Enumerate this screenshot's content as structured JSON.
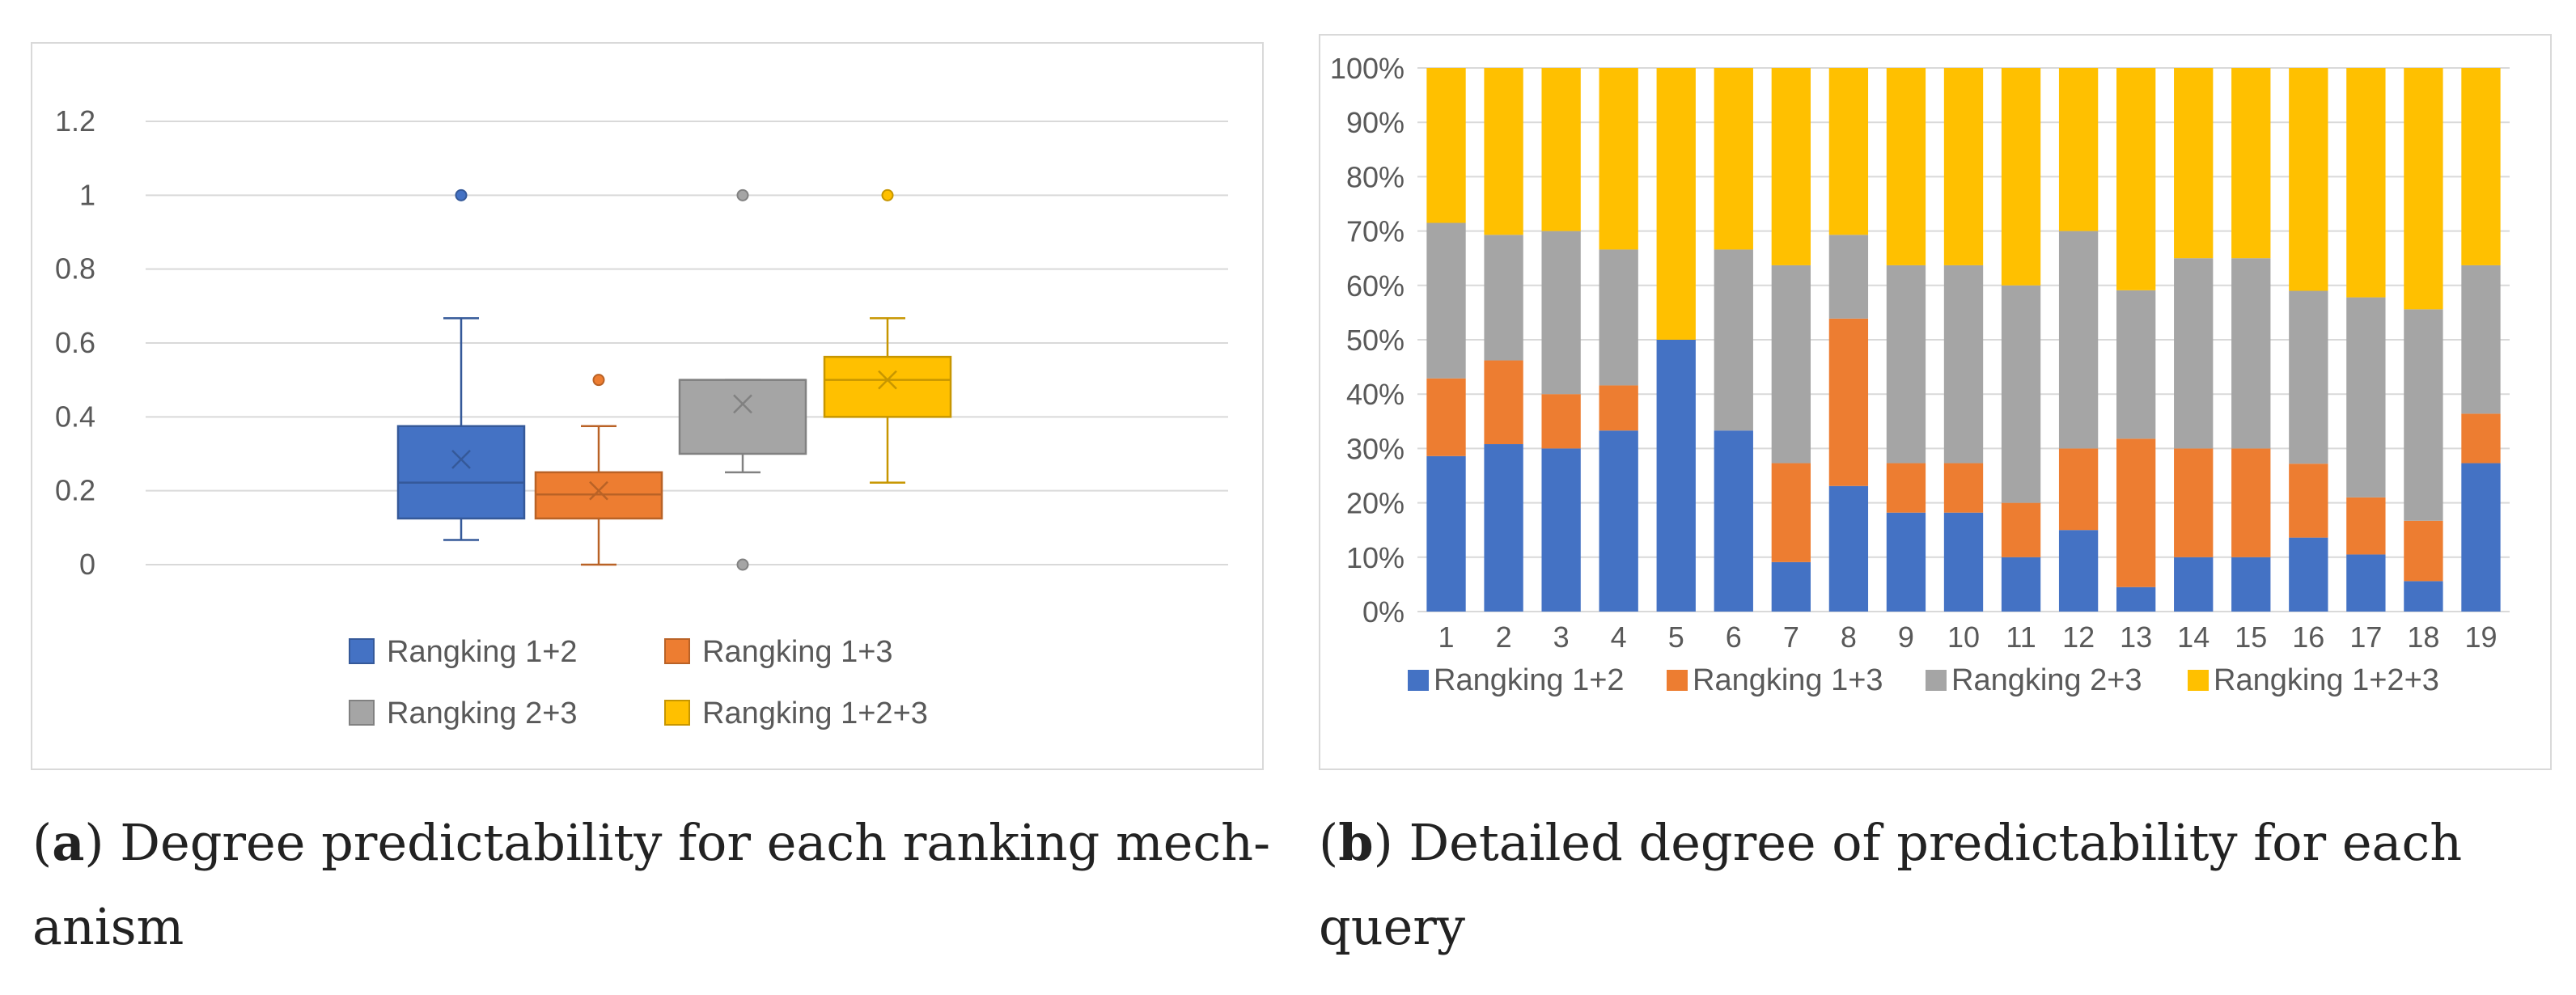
{
  "chart_data": [
    {
      "id": "a",
      "type": "box",
      "title": "",
      "xlabel": "",
      "ylabel": "",
      "ylim": [
        0,
        1.2
      ],
      "yticks": [
        "0",
        "0.2",
        "0.4",
        "0.6",
        "0.8",
        "1",
        "1.2"
      ],
      "series": [
        {
          "name": "Rangking 1+2",
          "color": "#4472c4",
          "min": 0.0667,
          "q1": 0.125,
          "median": 0.222,
          "q3": 0.375,
          "max": 0.667,
          "mean": 0.285,
          "outliers": [
            1.0
          ]
        },
        {
          "name": "Rangking 1+3",
          "color": "#ed7d31",
          "min": 0.0,
          "q1": 0.125,
          "median": 0.19,
          "q3": 0.25,
          "max": 0.375,
          "mean": 0.2,
          "outliers": [
            0.5
          ]
        },
        {
          "name": "Rangking 2+3",
          "color": "#a5a5a5",
          "min": 0.25,
          "q1": 0.3,
          "median": 0.5,
          "q3": 0.5,
          "max": 0.5,
          "mean": 0.435,
          "outliers": [
            1.0,
            0.0
          ]
        },
        {
          "name": "Rangking 1+2+3",
          "color": "#ffc000",
          "min": 0.222,
          "q1": 0.4,
          "median": 0.5,
          "q3": 0.5625,
          "max": 0.667,
          "mean": 0.5,
          "outliers": [
            1.0
          ]
        }
      ],
      "legend": "bottom"
    },
    {
      "id": "b",
      "type": "bar",
      "stacked": "percent",
      "title": "",
      "xlabel": "",
      "ylabel": "",
      "ylim": [
        0,
        100
      ],
      "yticks": [
        "0%",
        "10%",
        "20%",
        "30%",
        "40%",
        "50%",
        "60%",
        "70%",
        "80%",
        "90%",
        "100%"
      ],
      "categories": [
        "1",
        "2",
        "3",
        "4",
        "5",
        "6",
        "7",
        "8",
        "9",
        "10",
        "11",
        "12",
        "13",
        "14",
        "15",
        "16",
        "17",
        "18",
        "19"
      ],
      "series": [
        {
          "name": "Rangking 1+2",
          "color": "#4472c4",
          "values": [
            28.6,
            30.8,
            30,
            33.3,
            50,
            33.3,
            9.1,
            23.1,
            18.2,
            18.2,
            10,
            15,
            4.5,
            10,
            10,
            13.6,
            10.5,
            5.6,
            27.3
          ]
        },
        {
          "name": "Rangking 1+3",
          "color": "#ed7d31",
          "values": [
            14.3,
            15.4,
            10,
            8.3,
            0,
            0,
            18.2,
            30.8,
            9.1,
            9.1,
            10,
            15,
            27.3,
            20,
            20,
            13.6,
            10.5,
            11.1,
            9.1
          ]
        },
        {
          "name": "Rangking 2+3",
          "color": "#a5a5a5",
          "values": [
            28.6,
            23.1,
            30,
            25,
            0,
            33.3,
            36.4,
            15.4,
            36.4,
            36.4,
            40,
            40,
            27.3,
            35,
            35,
            31.8,
            36.8,
            38.9,
            27.3
          ]
        },
        {
          "name": "Rangking 1+2+3",
          "color": "#ffc000",
          "values": [
            28.5,
            30.7,
            30,
            33.4,
            50,
            33.4,
            36.3,
            30.7,
            36.3,
            36.3,
            40,
            30,
            40.9,
            35,
            35,
            41,
            42.2,
            44.4,
            36.3
          ]
        }
      ],
      "legend": "bottom"
    }
  ],
  "captions": {
    "a": {
      "label": "a",
      "open": "(",
      "close": ")",
      "line1": " Degree predictability for each ranking mech-",
      "line2": "anism"
    },
    "b": {
      "label": "b",
      "open": "(",
      "close": ")",
      "line1": " Detailed degree of predictability for each",
      "line2": "query"
    }
  }
}
